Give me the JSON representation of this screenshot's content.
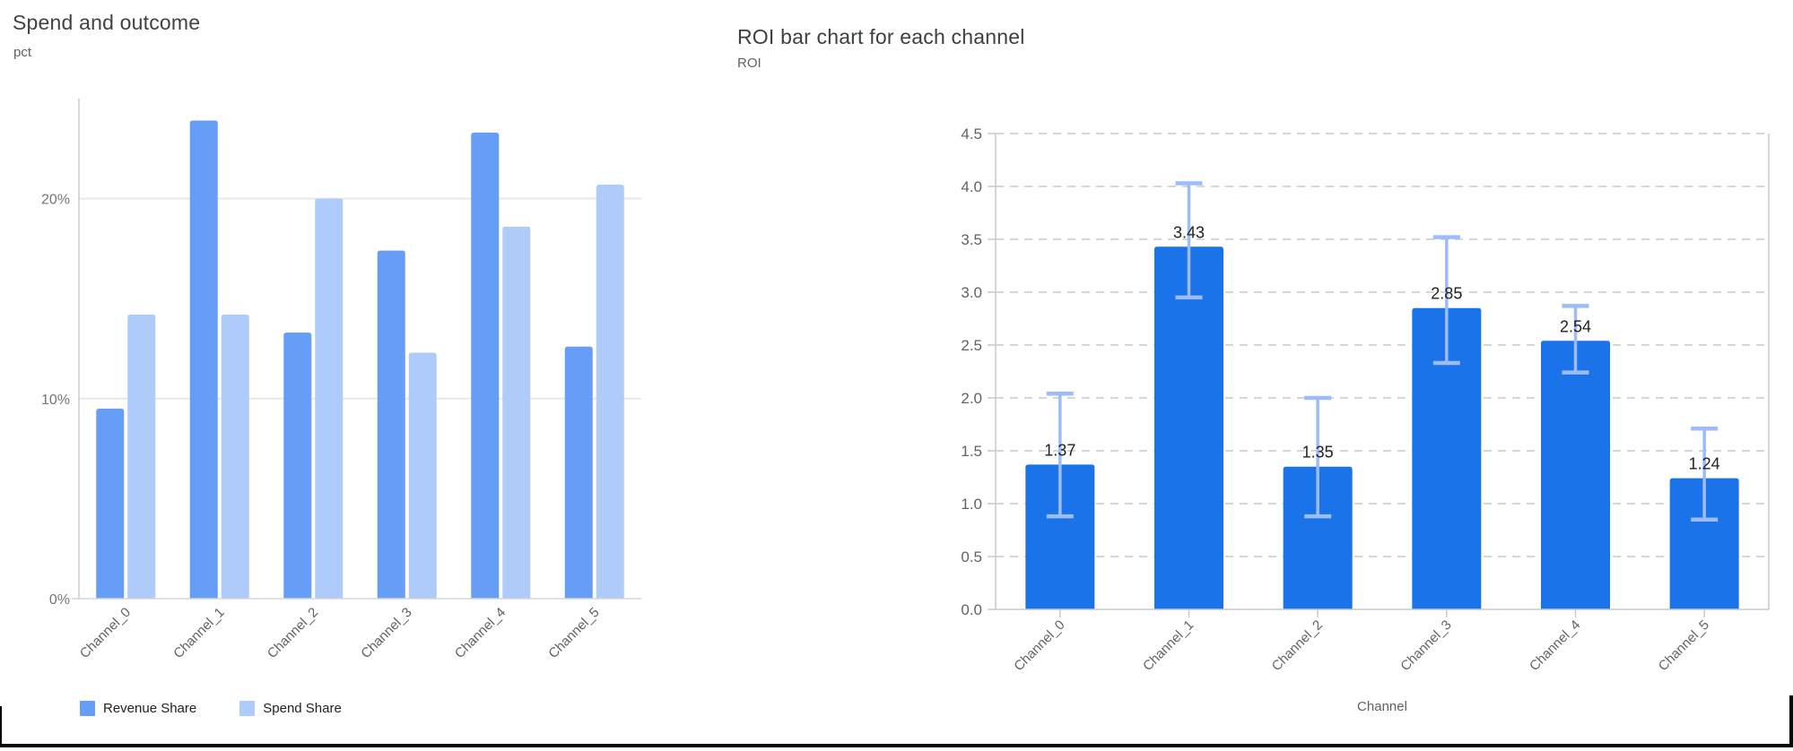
{
  "chart_data": [
    {
      "type": "bar",
      "title": "Spend and outcome",
      "axis_unit": "pct",
      "xlabel": "",
      "ylabel": "pct",
      "categories": [
        "Channel_0",
        "Channel_1",
        "Channel_2",
        "Channel_3",
        "Channel_4",
        "Channel_5"
      ],
      "series": [
        {
          "name": "Revenue Share",
          "color": "#669df6",
          "values": [
            9.5,
            23.9,
            13.3,
            17.4,
            23.3,
            12.6
          ]
        },
        {
          "name": "Spend Share",
          "color": "#aecbfa",
          "values": [
            14.2,
            14.2,
            20.0,
            12.3,
            18.6,
            20.7
          ]
        }
      ],
      "y_ticks": [
        {
          "value": 0,
          "label": "0%"
        },
        {
          "value": 10,
          "label": "10%"
        },
        {
          "value": 20,
          "label": "20%"
        }
      ],
      "ylim": [
        0,
        25
      ],
      "grid": "solid-horizontal",
      "legend_position": "bottom-left",
      "tick_label_color": "#757575",
      "category_label_color": "#616161",
      "gridline_color": "#e8e8e8",
      "baseline_color": "#d6d6d6",
      "spine_color": "#cccccc"
    },
    {
      "type": "bar",
      "title": "ROI bar chart for each channel",
      "ylabel": "ROI",
      "xlabel": "Channel",
      "categories": [
        "Channel_0",
        "Channel_1",
        "Channel_2",
        "Channel_3",
        "Channel_4",
        "Channel_5"
      ],
      "values": [
        1.37,
        3.43,
        1.35,
        2.85,
        2.54,
        1.24
      ],
      "value_labels": [
        "1.37",
        "3.43",
        "1.35",
        "2.85",
        "2.54",
        "1.24"
      ],
      "error_low": [
        0.88,
        2.95,
        0.88,
        2.33,
        2.24,
        0.85
      ],
      "error_high": [
        2.04,
        4.03,
        2.0,
        3.52,
        2.87,
        1.71
      ],
      "y_ticks": [
        0.0,
        0.5,
        1.0,
        1.5,
        2.0,
        2.5,
        3.0,
        3.5,
        4.0,
        4.5
      ],
      "y_tick_labels": [
        "0.0",
        "0.5",
        "1.0",
        "1.5",
        "2.0",
        "2.5",
        "3.0",
        "3.5",
        "4.0",
        "4.5"
      ],
      "ylim": [
        0,
        4.5
      ],
      "grid": "dashed-horizontal",
      "legend_position": "none",
      "bar_color": "#1a73e8",
      "error_color": "#9cbdf9",
      "value_label_color": "#202124",
      "tick_label_color": "#5f6368",
      "category_label_color": "#5f6368",
      "gridline_color": "#c9c9c9",
      "spine_color": "#c9c9c9"
    }
  ],
  "page": {
    "background": "#ffffff",
    "bottom_border_color": "#050505"
  }
}
